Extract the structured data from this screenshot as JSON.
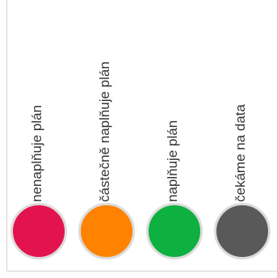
{
  "legend": {
    "items": [
      {
        "label": "nenaplňuje plán",
        "color": "#e3134f"
      },
      {
        "label": "částečně naplňuje plán",
        "color": "#ff8200"
      },
      {
        "label": "naplňuje plán",
        "color": "#0eb040"
      },
      {
        "label": "čekáme na data",
        "color": "#595959"
      }
    ]
  }
}
